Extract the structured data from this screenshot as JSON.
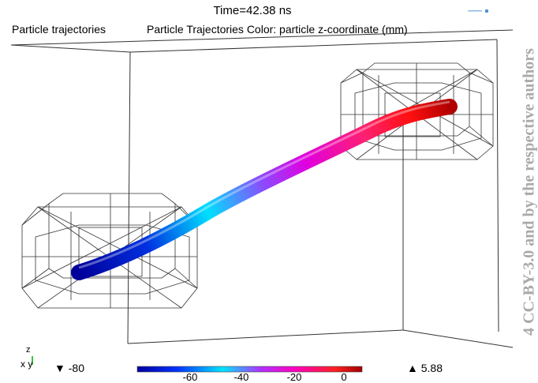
{
  "header": {
    "time_label": "Time=42.38 ns",
    "plot_title": "Particle trajectories",
    "color_title": "Particle Trajectories Color: particle z-coordinate (mm)"
  },
  "watermark": "4 CC-BY-3.0 and by the respective authors",
  "axes_triad": {
    "z": "z",
    "xy": "x  y"
  },
  "colorbar": {
    "min_label": "▼ -80",
    "max_label": "▲ 5.88",
    "ticks": [
      "-60",
      "-40",
      "-20",
      "0"
    ],
    "colors": [
      "#0000a0",
      "#0033ff",
      "#00e5ff",
      "#b030ff",
      "#ff00c0",
      "#ff2020",
      "#a00000"
    ]
  },
  "colors": {
    "wireframe": "#222222",
    "background": "#ffffff"
  }
}
